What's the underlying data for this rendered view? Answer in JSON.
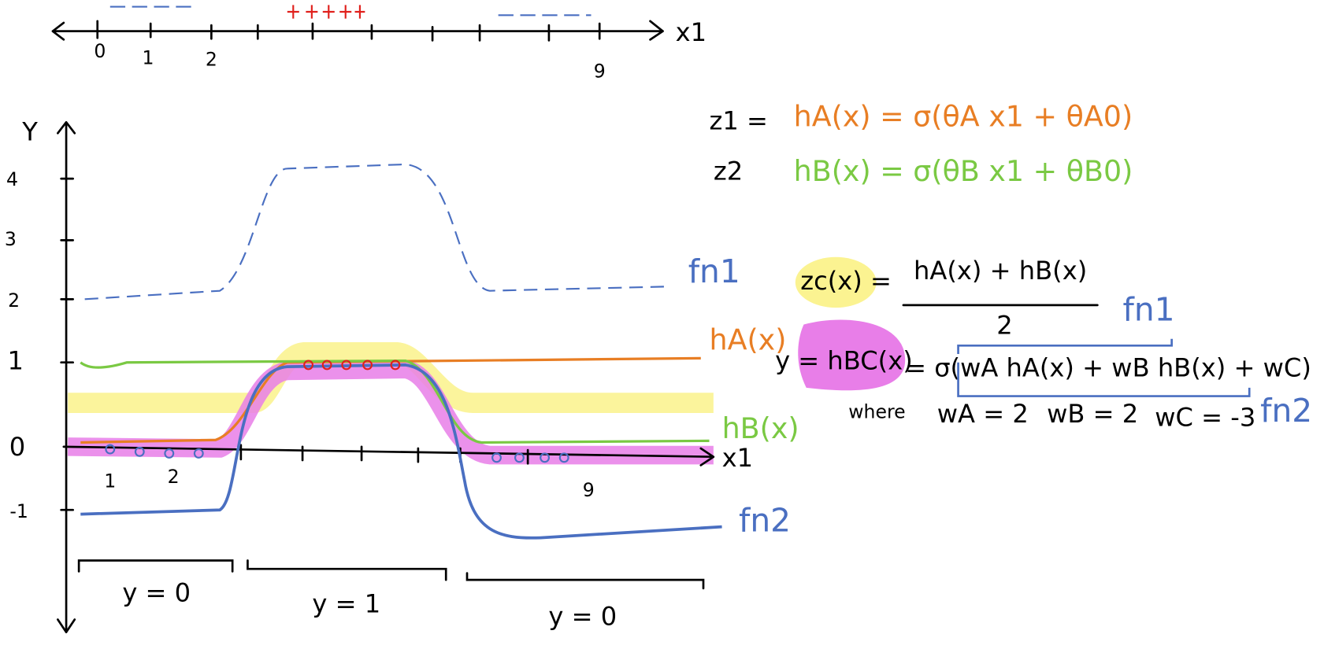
{
  "top_axis": {
    "label": "x1",
    "ticks": [
      "0",
      "1",
      "2",
      "9"
    ]
  },
  "plot": {
    "y_label": "Y",
    "y_ticks": [
      "4",
      "3",
      "2",
      "1",
      "0",
      "-1"
    ],
    "x_label": "x1",
    "x_ticks": [
      "1",
      "2",
      "9"
    ],
    "curve_labels": {
      "fn1": "fn1",
      "h_a": "hA(x)",
      "h_b": "hB(x)",
      "fn2": "fn2"
    },
    "regions": [
      "y = 0",
      "y = 1",
      "y = 0"
    ]
  },
  "equations": {
    "z1": "z1 =",
    "h_a": "hA(x) = σ(θA x1 + θA0)",
    "z2": "z2",
    "h_b": "hB(x) = σ(θB x1 + θB0)",
    "zc": "zc(x) =",
    "zc_numerator": "hA(x) + hB(x)",
    "zc_denominator": "2",
    "fn1": "fn1",
    "y_lhs": "y = hBC(x)",
    "y_rhs": "= σ(wA hA(x) + wB hB(x) + wC)",
    "fn2": "fn2",
    "where": "where",
    "w_a": "wA = 2",
    "w_b": "wB = 2",
    "w_c": "wC = -3"
  }
}
